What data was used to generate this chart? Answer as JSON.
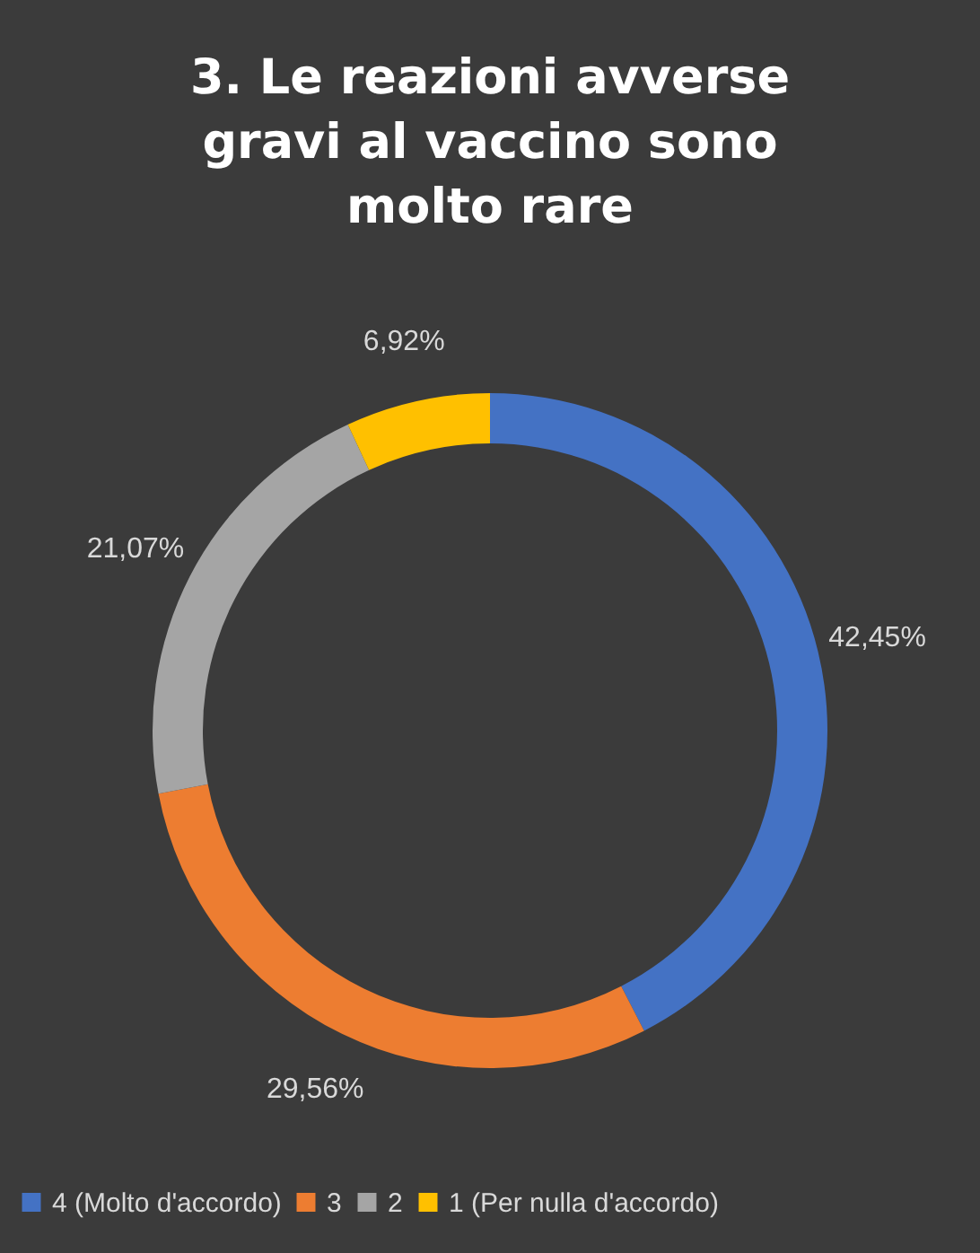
{
  "chart_data": {
    "type": "donut",
    "title": "3. Le reazioni avverse gravi al vaccino sono molto rare",
    "categories": [
      "4 (Molto d'accordo)",
      "3",
      "2",
      "1 (Per nulla d'accordo)"
    ],
    "values": [
      42.45,
      29.56,
      21.07,
      6.92
    ],
    "colors": [
      "#4472c4",
      "#ed7d31",
      "#a5a5a5",
      "#ffc000"
    ],
    "value_labels": [
      "42,45%",
      "29,56%",
      "21,07%",
      "6,92%"
    ],
    "legend": "bottom"
  }
}
